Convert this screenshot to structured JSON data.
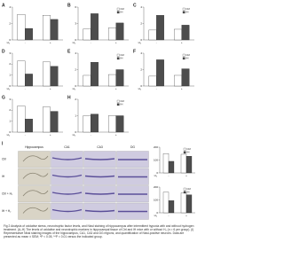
{
  "figure": {
    "panels": [
      {
        "label": "A",
        "type": "bar",
        "categories": [
          "-",
          "+"
        ],
        "x_label": "H₂",
        "ylim": [
          0,
          4
        ],
        "yticks": [
          0,
          2,
          4
        ],
        "series": [
          {
            "name": "Ctrl",
            "color": "#ffffff",
            "values": [
              3.1,
              3.0
            ]
          },
          {
            "name": "IH",
            "color": "#4d4d4d",
            "values": [
              1.4,
              2.5
            ]
          }
        ]
      },
      {
        "label": "B",
        "type": "bar",
        "categories": [
          "-",
          "+"
        ],
        "x_label": "H₂",
        "ylim": [
          0,
          6
        ],
        "yticks": [
          0,
          3,
          6
        ],
        "legend": "top-right",
        "series": [
          {
            "name": "Ctrl",
            "color": "#ffffff",
            "values": [
              2.0,
              2.2
            ]
          },
          {
            "name": "IH",
            "color": "#4d4d4d",
            "values": [
              4.8,
              3.1
            ]
          }
        ]
      },
      {
        "label": "C",
        "type": "bar",
        "categories": [
          "-",
          "+"
        ],
        "x_label": "H₂",
        "ylim": [
          0,
          4
        ],
        "yticks": [
          0,
          2,
          4
        ],
        "legend": "top-right",
        "series": [
          {
            "name": "Ctrl",
            "color": "#ffffff",
            "values": [
              1.2,
              1.3
            ]
          },
          {
            "name": "IH",
            "color": "#4d4d4d",
            "values": [
              3.0,
              1.8
            ]
          }
        ]
      },
      {
        "label": "D",
        "type": "bar",
        "categories": [
          "-",
          "+"
        ],
        "x_label": "H₂",
        "ylim": [
          0,
          3
        ],
        "yticks": [
          0,
          1,
          2,
          3
        ],
        "series": [
          {
            "name": "Ctrl",
            "color": "#ffffff",
            "values": [
              2.3,
              2.2
            ]
          },
          {
            "name": "IH",
            "color": "#4d4d4d",
            "values": [
              1.1,
              1.8
            ]
          }
        ]
      },
      {
        "label": "E",
        "type": "bar",
        "categories": [
          "-",
          "+"
        ],
        "x_label": "H₂",
        "ylim": [
          0,
          4
        ],
        "yticks": [
          0,
          2,
          4
        ],
        "legend": "top-right",
        "series": [
          {
            "name": "Ctrl",
            "color": "#ffffff",
            "values": [
              1.3,
              1.4
            ]
          },
          {
            "name": "IH",
            "color": "#4d4d4d",
            "values": [
              2.9,
              2.0
            ]
          }
        ]
      },
      {
        "label": "F",
        "type": "bar",
        "categories": [
          "-",
          "+"
        ],
        "x_label": "H₂",
        "ylim": [
          0,
          4
        ],
        "yticks": [
          0,
          2,
          4
        ],
        "legend": "top-right",
        "series": [
          {
            "name": "Ctrl",
            "color": "#ffffff",
            "values": [
              1.2,
              1.3
            ]
          },
          {
            "name": "IH",
            "color": "#4d4d4d",
            "values": [
              3.2,
              2.1
            ]
          }
        ]
      },
      {
        "label": "G",
        "type": "bar",
        "categories": [
          "-",
          "+"
        ],
        "x_label": "H₂",
        "ylim": [
          0,
          3
        ],
        "yticks": [
          0,
          1,
          2,
          3
        ],
        "series": [
          {
            "name": "Ctrl",
            "color": "#ffffff",
            "values": [
              2.4,
              2.3
            ]
          },
          {
            "name": "IH",
            "color": "#4d4d4d",
            "values": [
              1.2,
              1.9
            ]
          }
        ]
      },
      {
        "label": "H",
        "type": "bar",
        "categories": [
          "-",
          "+"
        ],
        "x_label": "H₂",
        "ylim": [
          0,
          2
        ],
        "yticks": [
          0,
          1,
          2
        ],
        "legend": "top-right",
        "series": [
          {
            "name": "Ctrl",
            "color": "#ffffff",
            "values": [
              1.0,
              1.0
            ]
          },
          {
            "name": "IH",
            "color": "#4d4d4d",
            "values": [
              1.1,
              1.0
            ]
          }
        ]
      }
    ],
    "panel_i": {
      "label": "I",
      "columns": [
        "Hippocampus",
        "CA1",
        "CA3",
        "DG"
      ],
      "rows": [
        "Ctrl",
        "IH",
        "Ctrl + H₂",
        "IH + H₂"
      ],
      "charts": [
        {
          "type": "bar",
          "categories": [
            "-",
            "+"
          ],
          "x_label": "H₂",
          "ylim": [
            0,
            200
          ],
          "yticks": [
            0,
            100,
            200
          ],
          "legend": "top-right",
          "series": [
            {
              "name": "Ctrl",
              "color": "#ffffff",
              "values": [
                150,
                145
              ]
            },
            {
              "name": "IH",
              "color": "#4d4d4d",
              "values": [
                90,
                130
              ]
            }
          ]
        },
        {
          "type": "bar",
          "categories": [
            "-",
            "+"
          ],
          "x_label": "H₂",
          "ylim": [
            0,
            200
          ],
          "yticks": [
            0,
            100,
            200
          ],
          "legend": "top-right",
          "series": [
            {
              "name": "Ctrl",
              "color": "#ffffff",
              "values": [
                160,
                155
              ]
            },
            {
              "name": "IH",
              "color": "#4d4d4d",
              "values": [
                95,
                140
              ]
            }
          ]
        }
      ]
    },
    "caption": "Fig 2 Analysis of oxidative stress, neurotrophic factor levels, and Nissl staining of hippocampus after intermittent hypoxia with and without hydrogen treatment. (A–H) The levels of oxidative and neurotrophic markers in hippocampal tissue of Ctrl and IH mice with or without H₂ (n = 6 per group). (I) Representative Nissl staining images of the hippocampus, CA1, CA3 and DG regions, and quantification of Nissl-positive neurons. Data are presented as mean ± SEM; *P < 0.05, **P < 0.01 versus the indicated group."
  }
}
